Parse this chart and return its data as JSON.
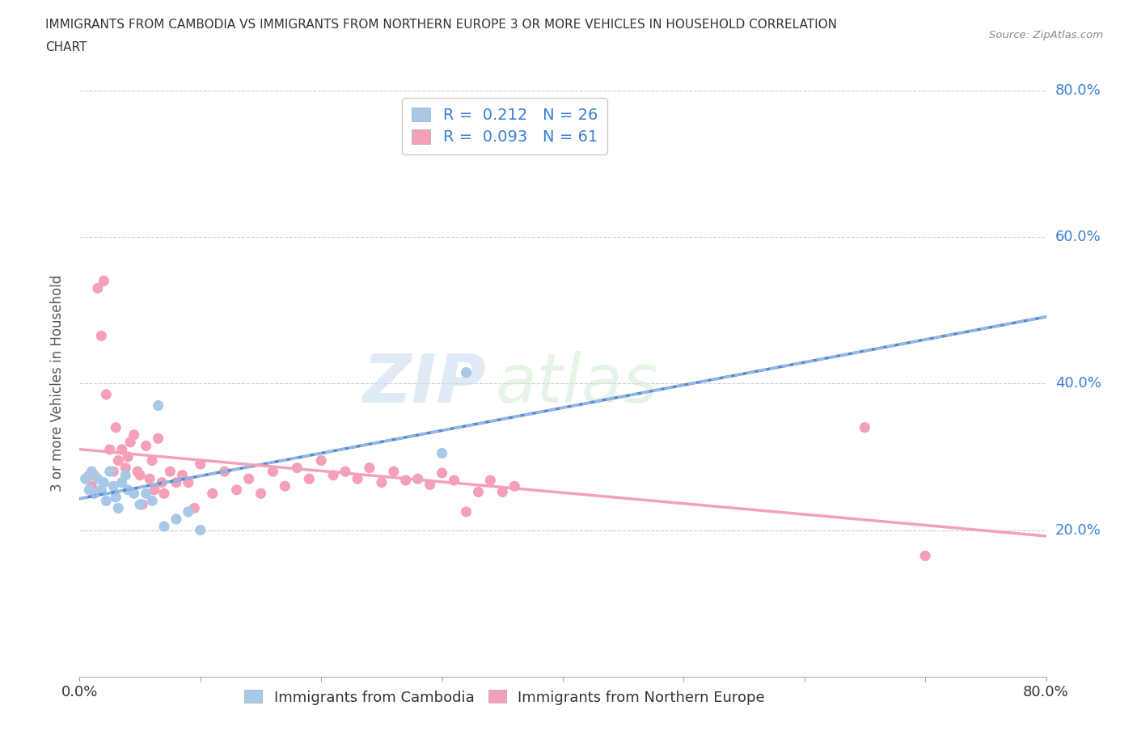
{
  "title_line1": "IMMIGRANTS FROM CAMBODIA VS IMMIGRANTS FROM NORTHERN EUROPE 3 OR MORE VEHICLES IN HOUSEHOLD CORRELATION",
  "title_line2": "CHART",
  "source_text": "Source: ZipAtlas.com",
  "ylabel": "3 or more Vehicles in Household",
  "xlim": [
    0.0,
    0.8
  ],
  "ylim": [
    0.0,
    0.8
  ],
  "xtick_labels_ends": [
    "0.0%",
    "80.0%"
  ],
  "xtick_values_ends": [
    0.0,
    0.8
  ],
  "ytick_labels": [
    "20.0%",
    "40.0%",
    "60.0%",
    "80.0%"
  ],
  "ytick_values": [
    0.2,
    0.4,
    0.6,
    0.8
  ],
  "xtick_minor_values": [
    0.1,
    0.2,
    0.3,
    0.4,
    0.5,
    0.6,
    0.7
  ],
  "watermark_zip": "ZIP",
  "watermark_atlas": "atlas",
  "color_cambodia": "#a8c8e8",
  "color_northern_europe": "#f4a0b8",
  "R_cambodia": 0.212,
  "N_cambodia": 26,
  "R_northern_europe": 0.093,
  "N_northern_europe": 61,
  "legend_label_color": "#3a7fd5",
  "ytick_color": "#3a7fd5",
  "xtick_end_color": "#3a7fd5",
  "cambodia_x": [
    0.005,
    0.008,
    0.01,
    0.012,
    0.015,
    0.018,
    0.02,
    0.022,
    0.025,
    0.028,
    0.03,
    0.032,
    0.035,
    0.038,
    0.04,
    0.045,
    0.05,
    0.055,
    0.06,
    0.065,
    0.07,
    0.08,
    0.09,
    0.1,
    0.3,
    0.32
  ],
  "cambodia_y": [
    0.27,
    0.255,
    0.28,
    0.25,
    0.27,
    0.255,
    0.265,
    0.24,
    0.28,
    0.26,
    0.245,
    0.23,
    0.265,
    0.275,
    0.255,
    0.25,
    0.235,
    0.25,
    0.24,
    0.37,
    0.205,
    0.215,
    0.225,
    0.2,
    0.305,
    0.415
  ],
  "northern_europe_x": [
    0.005,
    0.008,
    0.01,
    0.012,
    0.015,
    0.018,
    0.02,
    0.022,
    0.025,
    0.028,
    0.03,
    0.032,
    0.035,
    0.038,
    0.04,
    0.042,
    0.045,
    0.048,
    0.05,
    0.052,
    0.055,
    0.058,
    0.06,
    0.062,
    0.065,
    0.068,
    0.07,
    0.075,
    0.08,
    0.085,
    0.09,
    0.095,
    0.1,
    0.11,
    0.12,
    0.13,
    0.14,
    0.15,
    0.16,
    0.17,
    0.18,
    0.19,
    0.2,
    0.21,
    0.22,
    0.23,
    0.24,
    0.25,
    0.26,
    0.27,
    0.28,
    0.29,
    0.3,
    0.31,
    0.32,
    0.33,
    0.34,
    0.35,
    0.36,
    0.65,
    0.7
  ],
  "northern_europe_y": [
    0.27,
    0.275,
    0.26,
    0.275,
    0.53,
    0.465,
    0.54,
    0.385,
    0.31,
    0.28,
    0.34,
    0.295,
    0.31,
    0.285,
    0.3,
    0.32,
    0.33,
    0.28,
    0.275,
    0.235,
    0.315,
    0.27,
    0.295,
    0.255,
    0.325,
    0.265,
    0.25,
    0.28,
    0.265,
    0.275,
    0.265,
    0.23,
    0.29,
    0.25,
    0.28,
    0.255,
    0.27,
    0.25,
    0.28,
    0.26,
    0.285,
    0.27,
    0.295,
    0.275,
    0.28,
    0.27,
    0.285,
    0.265,
    0.28,
    0.268,
    0.27,
    0.262,
    0.278,
    0.268,
    0.225,
    0.252,
    0.268,
    0.252,
    0.26,
    0.34,
    0.165
  ]
}
